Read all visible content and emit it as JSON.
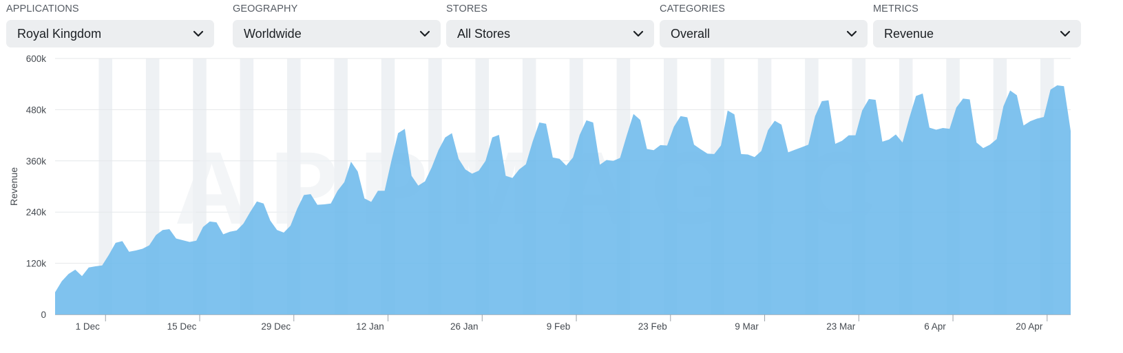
{
  "filters": [
    {
      "label": "APPLICATIONS",
      "value": "Royal Kingdom"
    },
    {
      "label": "GEOGRAPHY",
      "value": "Worldwide"
    },
    {
      "label": "STORES",
      "value": "All Stores"
    },
    {
      "label": "CATEGORIES",
      "value": "Overall"
    },
    {
      "label": "METRICS",
      "value": "Revenue"
    }
  ],
  "watermark": "APPMAGIC",
  "chart_data": {
    "type": "area",
    "title": "",
    "xlabel": "",
    "ylabel": "Revenue",
    "ylim": [
      0,
      600000
    ],
    "yticks": [
      {
        "value": 0,
        "label": "0"
      },
      {
        "value": 120000,
        "label": "120k"
      },
      {
        "value": 240000,
        "label": "240k"
      },
      {
        "value": 360000,
        "label": "360k"
      },
      {
        "value": 480000,
        "label": "480k"
      },
      {
        "value": 600000,
        "label": "600k"
      }
    ],
    "x_start": "2024-11-24",
    "xticks": [
      {
        "date": "2024-12-01",
        "label": "1 Dec"
      },
      {
        "date": "2024-12-15",
        "label": "15 Dec"
      },
      {
        "date": "2024-12-29",
        "label": "29 Dec"
      },
      {
        "date": "2025-01-12",
        "label": "12 Jan"
      },
      {
        "date": "2025-01-26",
        "label": "26 Jan"
      },
      {
        "date": "2025-02-09",
        "label": "9 Feb"
      },
      {
        "date": "2025-02-23",
        "label": "23 Feb"
      },
      {
        "date": "2025-03-09",
        "label": "9 Mar"
      },
      {
        "date": "2025-03-23",
        "label": "23 Mar"
      },
      {
        "date": "2025-04-06",
        "label": "6 Apr"
      },
      {
        "date": "2025-04-20",
        "label": "20 Apr"
      }
    ],
    "grid": true,
    "weekend_shading": true,
    "series": [
      {
        "name": "Revenue",
        "color": "#6db9ec",
        "values": [
          52000,
          78000,
          95000,
          105000,
          90000,
          110000,
          113000,
          115000,
          140000,
          168000,
          172000,
          147000,
          150000,
          154000,
          162000,
          186000,
          198000,
          200000,
          178000,
          174000,
          170000,
          173000,
          205000,
          218000,
          216000,
          188000,
          194000,
          197000,
          213000,
          240000,
          265000,
          260000,
          220000,
          198000,
          192000,
          208000,
          248000,
          280000,
          282000,
          257000,
          258000,
          260000,
          290000,
          310000,
          358000,
          335000,
          272000,
          264000,
          290000,
          290000,
          360000,
          425000,
          435000,
          325000,
          302000,
          312000,
          345000,
          385000,
          415000,
          425000,
          365000,
          340000,
          330000,
          337000,
          360000,
          415000,
          421000,
          325000,
          320000,
          340000,
          352000,
          405000,
          450000,
          447000,
          368000,
          365000,
          349000,
          368000,
          421000,
          455000,
          450000,
          351000,
          362000,
          360000,
          367000,
          420000,
          470000,
          456000,
          388000,
          385000,
          397000,
          396000,
          440000,
          465000,
          462000,
          398000,
          387000,
          377000,
          376000,
          396000,
          478000,
          469000,
          376000,
          375000,
          369000,
          383000,
          432000,
          454000,
          445000,
          380000,
          386000,
          392000,
          398000,
          465000,
          500000,
          502000,
          400000,
          407000,
          420000,
          420000,
          478000,
          505000,
          503000,
          405000,
          410000,
          422000,
          403000,
          460000,
          512000,
          518000,
          438000,
          433000,
          437000,
          435000,
          485000,
          506000,
          504000,
          403000,
          390000,
          398000,
          411000,
          488000,
          525000,
          514000,
          443000,
          453000,
          459000,
          463000,
          527000,
          537000,
          535000,
          430000
        ]
      }
    ]
  }
}
